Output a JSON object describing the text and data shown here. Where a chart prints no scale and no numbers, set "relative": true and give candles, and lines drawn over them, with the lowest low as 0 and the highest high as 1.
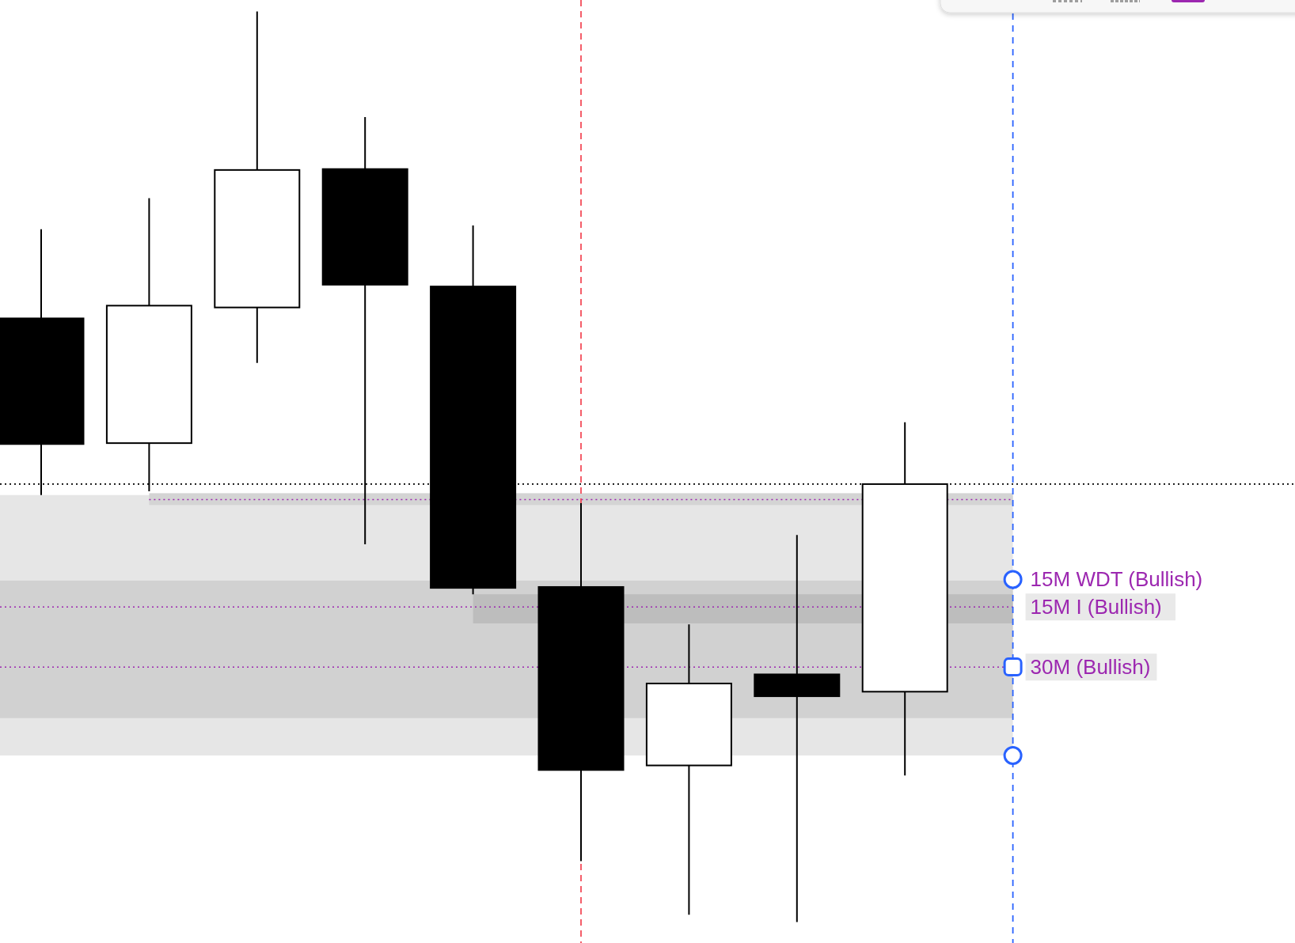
{
  "chart_data": {
    "type": "candlestick",
    "relative": true,
    "categories": [
      null,
      null,
      null,
      null,
      null,
      null,
      null,
      null,
      null
    ],
    "ohlc": [
      [
        0.663,
        0.761,
        0.469,
        0.525
      ],
      [
        0.526,
        0.795,
        0.473,
        0.677
      ],
      [
        0.675,
        1.0,
        0.614,
        0.826
      ],
      [
        0.827,
        0.884,
        0.415,
        0.7
      ],
      [
        0.698,
        0.765,
        0.36,
        0.367
      ],
      [
        0.368,
        0.46,
        0.067,
        0.167
      ],
      [
        0.172,
        0.327,
        0.008,
        0.262
      ],
      [
        0.272,
        0.425,
        0.0,
        0.248
      ],
      [
        0.253,
        0.549,
        0.161,
        0.481
      ]
    ],
    "color": "#000000",
    "colors": [
      "#000000",
      "#ffffff",
      "#ffffff",
      "#000000",
      "#000000",
      "#000000",
      "#ffffff",
      "#000000",
      "#ffffff"
    ],
    "bands": [
      {
        "axis": "y",
        "from": 0.183,
        "to": 0.469,
        "color": "#e6e6e6"
      },
      {
        "axis": "y",
        "from": 0.224,
        "to": 0.375,
        "color": "#d1d1d1"
      },
      {
        "axis": "y",
        "from": 0.458,
        "to": 0.471,
        "color": "#d4d4d4"
      },
      {
        "axis": "y",
        "from": 0.328,
        "to": 0.36,
        "color": "#bdbdbd",
        "label": "15M WDT (Bullish)"
      }
    ],
    "ref_lines": [
      {
        "axis": "y",
        "value": 0.481,
        "color": "#000000",
        "line_style": "dotted"
      },
      {
        "axis": "y",
        "value": 0.464,
        "color": "#9c27b0",
        "line_style": "dotted"
      },
      {
        "axis": "y",
        "value": 0.346,
        "color": "#9c27b0",
        "line_style": "dotted",
        "label": "15M I (Bullish)"
      },
      {
        "axis": "y",
        "value": 0.28,
        "color": "#9c27b0",
        "line_style": "dotted",
        "label": "30M (Bullish)"
      }
    ]
  }
}
